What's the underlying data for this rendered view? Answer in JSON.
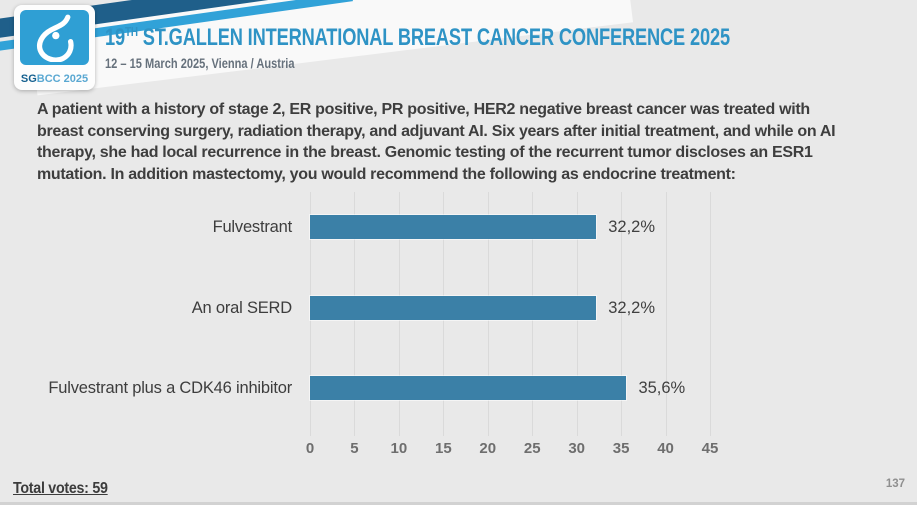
{
  "header": {
    "logo": {
      "brand_bold": "SG",
      "brand_rest": "BCC 2025"
    },
    "title": {
      "prefix": "19",
      "sup": "TH",
      "rest": " ST.GALLEN INTERNATIONAL BREAST CANCER CONFERENCE 2025"
    },
    "subtitle": "12 – 15 March 2025, Vienna / Austria"
  },
  "question": {
    "text": "A patient with a history of stage 2, ER positive, PR positive, HER2 negative breast cancer was treated with breast conserving surgery, radiation therapy, and adjuvant AI.  Six years after initial treatment, and while on AI therapy, she had local recurrence in the breast. Genomic testing of the recurrent tumor discloses an ESR1 mutation.  In addition mastectomy, you would recommend the following as endocrine treatment:"
  },
  "chart_data": {
    "type": "bar",
    "orientation": "horizontal",
    "title": "",
    "categories": [
      "Fulvestrant",
      "An oral SERD",
      "Fulvestrant plus a CDK46 inhibitor"
    ],
    "values": [
      32.2,
      32.2,
      35.6
    ],
    "value_labels": [
      "32,2%",
      "32,2%",
      "35,6%"
    ],
    "xlim": [
      0,
      45
    ],
    "xticks": [
      0,
      5,
      10,
      15,
      20,
      25,
      30,
      35,
      40,
      45
    ],
    "grid": true,
    "legend": false
  },
  "footer": {
    "total_votes": "Total votes: 59",
    "page_number": "137"
  },
  "colors": {
    "background": "#e9e9e9",
    "accent_blue": "#2e93c5",
    "subtitle_gray": "#66717c",
    "question_text": "#3e3e3e",
    "bar": "#3b80a7",
    "category_label": "#3d3d3d",
    "value_label": "#404040",
    "tick_label": "#6e6e6e",
    "gridline": "#dadada",
    "ribbon_dark": "#1f5f8a",
    "ribbon_light": "#31a2d8",
    "logo_blue": "#2f9fd4",
    "logo_sg": "#15608f",
    "logo_bcc": "#5aa8d2",
    "footer_text": "#3c3c3c",
    "page_number": "#8f8f8f"
  }
}
